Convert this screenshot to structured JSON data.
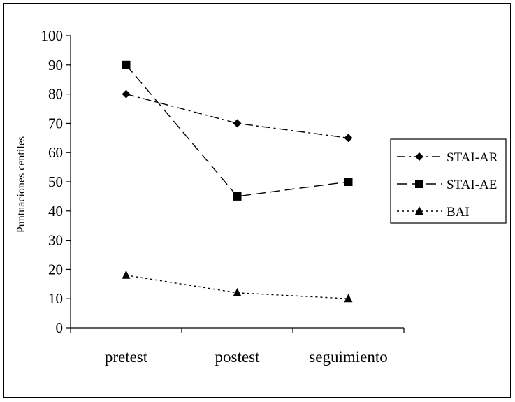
{
  "chart_data": {
    "type": "line",
    "title": "",
    "xlabel": "",
    "ylabel": "Puntuaciones centiles",
    "categories": [
      "pretest",
      "postest",
      "seguimiento"
    ],
    "ylim": [
      0,
      100
    ],
    "yticks": [
      0,
      10,
      20,
      30,
      40,
      50,
      60,
      70,
      80,
      90,
      100
    ],
    "grid": false,
    "legend_position": "right",
    "series": [
      {
        "name": "STAI-AR",
        "values": [
          80,
          70,
          65
        ],
        "marker": "diamond",
        "dash": "dash-dot",
        "color": "#000000"
      },
      {
        "name": "STAI-AE",
        "values": [
          90,
          45,
          50
        ],
        "marker": "square",
        "dash": "long-dash",
        "color": "#000000"
      },
      {
        "name": "BAI",
        "values": [
          18,
          12,
          10
        ],
        "marker": "triangle",
        "dash": "dotted",
        "color": "#000000"
      }
    ]
  }
}
